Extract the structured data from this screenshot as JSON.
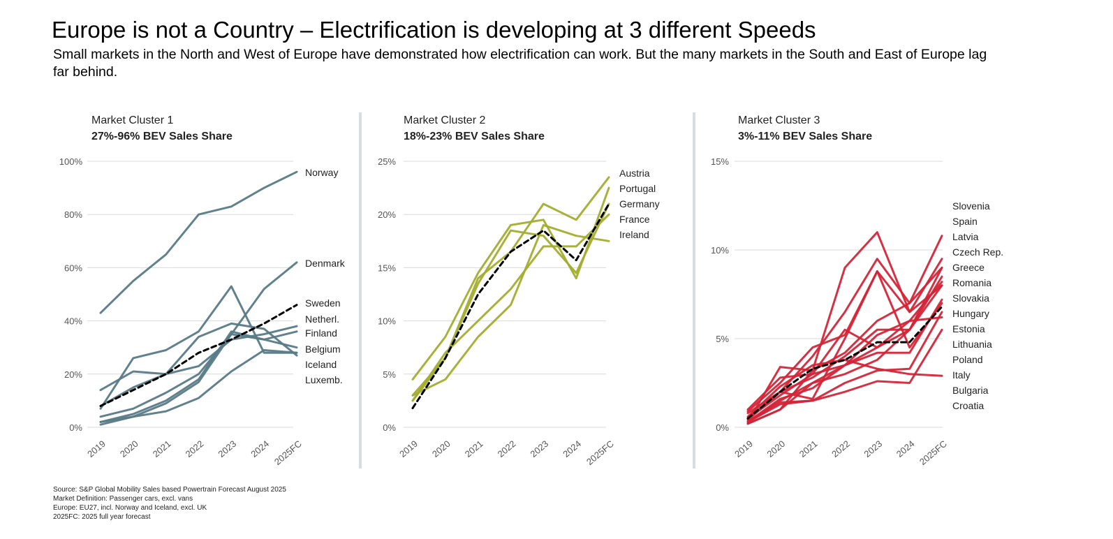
{
  "title": "Europe is not a Country – Electrification is developing at 3 different Speeds",
  "subtitle": "Small markets in the North and West of Europe have demonstrated how electrification can work. But the many markets in the South and East of Europe lag far behind.",
  "notes": [
    "Source: S&P Global Mobility Sales based Powertrain Forecast August 2025",
    "Market Definition: Passenger cars, excl. vans",
    "Europe: EU27, incl. Norway and Iceland, excl. UK",
    "2025FC: 2025 full year forecast"
  ],
  "chart_data": [
    {
      "type": "line",
      "cluster": "Market Cluster 1",
      "title": "27%-96% BEV Sales Share",
      "color": "#587a87",
      "average_color": "#000000",
      "x": [
        "2019",
        "2020",
        "2021",
        "2022",
        "2023",
        "2024",
        "2025FC"
      ],
      "yticks": [
        "0%",
        "20%",
        "40%",
        "60%",
        "80%",
        "100%"
      ],
      "ylim": [
        0,
        100
      ],
      "series": [
        {
          "name": "Norway",
          "values": [
            43,
            55,
            65,
            80,
            83,
            90,
            96
          ]
        },
        {
          "name": "Denmark",
          "values": [
            4,
            7,
            13,
            20,
            35,
            52,
            62
          ]
        },
        {
          "name": "Sweden",
          "values": [
            14,
            21,
            20,
            23,
            33,
            35,
            38
          ]
        },
        {
          "name": "Netherl.",
          "values": [
            7,
            26,
            29,
            36,
            53,
            28,
            28
          ]
        },
        {
          "name": "Finland",
          "values": [
            2,
            5,
            10,
            18,
            36,
            33,
            36
          ]
        },
        {
          "name": "Belgium",
          "values": [
            1,
            4,
            9,
            17,
            35,
            33,
            30
          ]
        },
        {
          "name": "Iceland",
          "values": [
            8,
            15,
            20,
            34,
            39,
            37,
            27
          ]
        },
        {
          "name": "Luxemb.",
          "values": [
            2,
            4,
            6,
            11,
            21,
            29,
            28
          ]
        },
        {
          "name": "Average",
          "dashed": true,
          "values": [
            8,
            14,
            20,
            28,
            33,
            39,
            46
          ]
        }
      ],
      "labels": [
        "Norway",
        "Denmark",
        "Sweden",
        "Netherl.",
        "Finland",
        "Belgium",
        "Iceland",
        "Luxemb."
      ]
    },
    {
      "type": "line",
      "cluster": "Market Cluster 2",
      "title": "18%-23% BEV Sales Share",
      "color": "#a3ad2f",
      "average_color": "#000000",
      "x": [
        "2019",
        "2020",
        "2021",
        "2022",
        "2023",
        "2024",
        "2025FC"
      ],
      "yticks": [
        "0%",
        "5%",
        "10%",
        "15%",
        "20%",
        "25%"
      ],
      "ylim": [
        0,
        25
      ],
      "series": [
        {
          "name": "Austria",
          "values": [
            3,
            6.5,
            14,
            16.5,
            21,
            19.5,
            23.5
          ]
        },
        {
          "name": "Portugal",
          "values": [
            4.5,
            8.5,
            14.5,
            19,
            19.5,
            14,
            22.5
          ]
        },
        {
          "name": "Germany",
          "values": [
            2.5,
            6.5,
            13.5,
            18.5,
            18,
            14.5,
            21
          ]
        },
        {
          "name": "France",
          "values": [
            2.5,
            7,
            10,
            13,
            17,
            17,
            20
          ]
        },
        {
          "name": "Ireland",
          "values": [
            3,
            4.5,
            8.5,
            11.5,
            19,
            18,
            17.5
          ]
        },
        {
          "name": "Average",
          "dashed": true,
          "values": [
            1.8,
            6.5,
            12.5,
            16.5,
            18.5,
            15.7,
            21
          ]
        }
      ],
      "labels": [
        "Austria",
        "Portugal",
        "Germany",
        "France",
        "Ireland"
      ]
    },
    {
      "type": "line",
      "cluster": "Market Cluster 3",
      "title": "3%-11% BEV Sales Share",
      "color": "#d42538",
      "average_color": "#000000",
      "x": [
        "2019",
        "2020",
        "2021",
        "2022",
        "2023",
        "2024",
        "2025FC"
      ],
      "yticks": [
        "0%",
        "5%",
        "10%",
        "15%"
      ],
      "ylim": [
        0,
        15
      ],
      "series": [
        {
          "name": "Slovenia",
          "values": [
            0.8,
            2.0,
            4.0,
            6.5,
            9.5,
            7.0,
            10.8
          ]
        },
        {
          "name": "Spain",
          "values": [
            0.5,
            2.0,
            2.8,
            4.0,
            5.5,
            5.5,
            9.0
          ]
        },
        {
          "name": "Latvia",
          "values": [
            0.3,
            3.4,
            3.2,
            9.0,
            11.0,
            6.5,
            8.0
          ]
        },
        {
          "name": "Czech Rep.",
          "values": [
            0.3,
            1.6,
            2.2,
            3.5,
            4.5,
            5.5,
            8.5
          ]
        },
        {
          "name": "Greece",
          "values": [
            0.2,
            1.0,
            3.2,
            4.2,
            6.0,
            7.0,
            9.0
          ]
        },
        {
          "name": "Romania",
          "values": [
            0.9,
            2.5,
            4.5,
            5.2,
            8.8,
            6.5,
            9.5
          ]
        },
        {
          "name": "Slovakia",
          "values": [
            0.2,
            1.0,
            2.5,
            3.0,
            3.8,
            5.5,
            8.0
          ]
        },
        {
          "name": "Hungary",
          "values": [
            1.0,
            2.8,
            3.0,
            5.5,
            4.5,
            6.0,
            8.2
          ]
        },
        {
          "name": "Estonia",
          "values": [
            0.4,
            2.0,
            1.6,
            5.0,
            8.8,
            4.5,
            7.0
          ]
        },
        {
          "name": "Lithuania",
          "values": [
            0.5,
            1.8,
            3.0,
            3.5,
            4.2,
            4.2,
            7.2
          ]
        },
        {
          "name": "Poland",
          "values": [
            0.3,
            1.5,
            2.5,
            3.5,
            5.2,
            6.0,
            6.2
          ]
        },
        {
          "name": "Italy",
          "values": [
            0.6,
            2.3,
            3.5,
            3.8,
            3.3,
            3.0,
            2.9
          ]
        },
        {
          "name": "Bulgaria",
          "values": [
            0.3,
            1.3,
            1.5,
            2.0,
            2.6,
            2.5,
            5.5
          ]
        },
        {
          "name": "Croatia",
          "values": [
            0.3,
            1.4,
            1.5,
            2.5,
            3.2,
            3.3,
            6.5
          ]
        },
        {
          "name": "Average",
          "dashed": true,
          "values": [
            0.5,
            2.0,
            3.3,
            3.8,
            4.8,
            4.8,
            6.8
          ]
        }
      ],
      "labels": [
        "Slovenia",
        "Spain",
        "Latvia",
        "Czech Rep.",
        "Greece",
        "Romania",
        "Slovakia",
        "Hungary",
        "Estonia",
        "Lithuania",
        "Poland",
        "Italy",
        "Bulgaria",
        "Croatia"
      ]
    }
  ]
}
